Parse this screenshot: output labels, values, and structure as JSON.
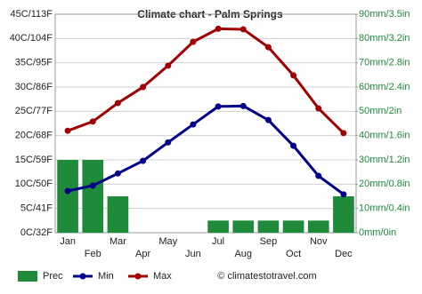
{
  "chart_data": {
    "type": "climate",
    "title": "Climate chart - Palm Springs",
    "categories": [
      "Jan",
      "Feb",
      "Mar",
      "Apr",
      "May",
      "Jun",
      "Jul",
      "Aug",
      "Sep",
      "Oct",
      "Nov",
      "Dec"
    ],
    "series": [
      {
        "name": "Prec",
        "color": "#1f8a3a",
        "axis": "y2",
        "kind": "bar",
        "values": [
          30,
          30,
          15,
          0,
          0,
          0,
          5,
          5,
          5,
          5,
          5,
          15
        ]
      },
      {
        "name": "Min",
        "color": "#00008b",
        "kind": "line",
        "values": [
          8.6,
          9.7,
          12.2,
          14.8,
          18.6,
          22.3,
          26.0,
          26.1,
          23.2,
          17.9,
          11.7,
          7.9
        ]
      },
      {
        "name": "Max",
        "color": "#a00000",
        "kind": "line",
        "values": [
          21.0,
          22.9,
          26.7,
          30.0,
          34.4,
          39.3,
          42.0,
          41.9,
          38.2,
          32.4,
          25.6,
          20.5
        ]
      }
    ],
    "ylim": [
      0,
      45
    ],
    "yticks": [
      {
        "value": 0,
        "label": "0C/32F"
      },
      {
        "value": 5,
        "label": "5C/41F"
      },
      {
        "value": 10,
        "label": "10C/50F"
      },
      {
        "value": 15,
        "label": "15C/59F"
      },
      {
        "value": 20,
        "label": "20C/68F"
      },
      {
        "value": 25,
        "label": "25C/77F"
      },
      {
        "value": 30,
        "label": "30C/86F"
      },
      {
        "value": 35,
        "label": "35C/95F"
      },
      {
        "value": 40,
        "label": "40C/104F"
      },
      {
        "value": 45,
        "label": "45C/113F"
      }
    ],
    "y2lim": [
      0,
      90
    ],
    "y2ticks": [
      {
        "value": 0,
        "label": "0mm/0in"
      },
      {
        "value": 10,
        "label": "10mm/0.4in"
      },
      {
        "value": 20,
        "label": "20mm/0.8in"
      },
      {
        "value": 30,
        "label": "30mm/1.2in"
      },
      {
        "value": 40,
        "label": "40mm/1.6in"
      },
      {
        "value": 50,
        "label": "50mm/2in"
      },
      {
        "value": 60,
        "label": "60mm/2.4in"
      },
      {
        "value": 70,
        "label": "70mm/2.8in"
      },
      {
        "value": 80,
        "label": "80mm/3.2in"
      },
      {
        "value": 90,
        "label": "90mm/3.5in"
      }
    ],
    "grid": true,
    "legend": "bottom",
    "footer": "© climatestotravel.com"
  }
}
